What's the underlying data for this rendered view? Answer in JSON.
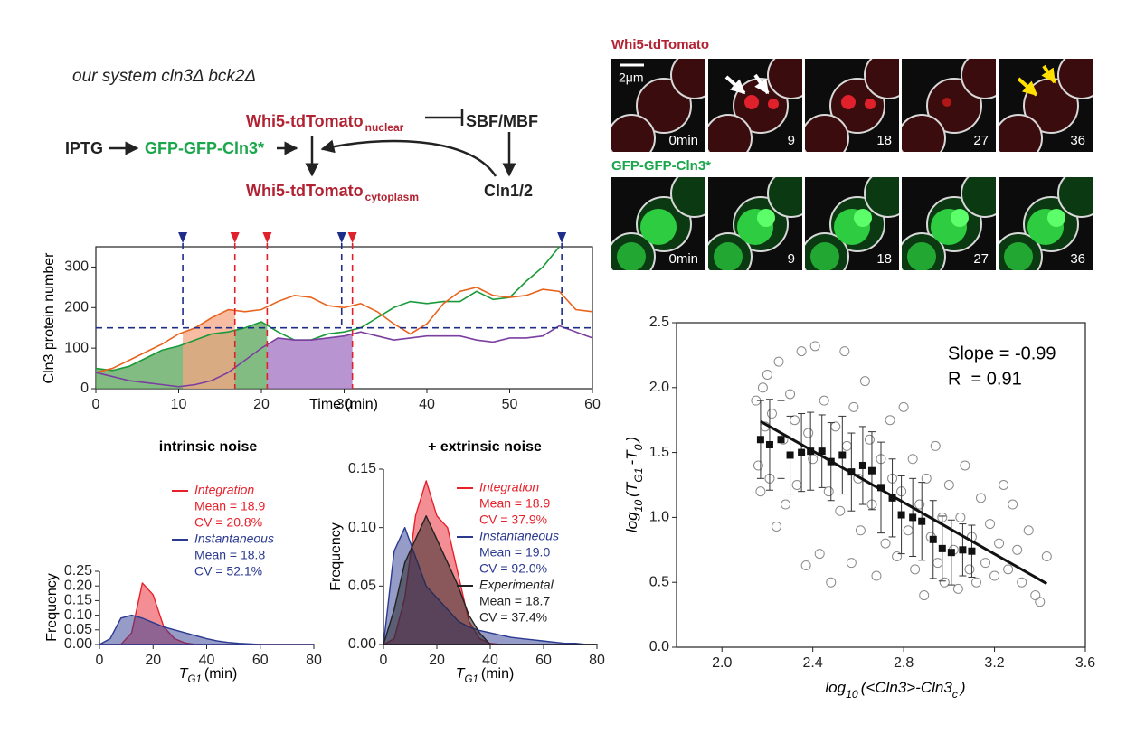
{
  "diagram": {
    "subtitle": "our system cln3Δ bck2Δ",
    "nodes": [
      {
        "label": "IPTG"
      },
      {
        "label": "GFP-GFP-Cln3*"
      },
      {
        "label": "Whi5-tdTomato",
        "sub": "nuclear"
      },
      {
        "label": "SBF/MBF"
      },
      {
        "label": "Whi5-tdTomato",
        "sub": "cytoplasm"
      },
      {
        "label": "Cln1/2"
      }
    ]
  },
  "microscopy": {
    "rows": [
      {
        "title": "Whi5-tdTomato",
        "scale_bar": "2μm",
        "times": [
          "0min",
          "9",
          "18",
          "27",
          "36"
        ]
      },
      {
        "title": "GFP-GFP-Cln3*",
        "times": [
          "0min",
          "9",
          "18",
          "27",
          "36"
        ]
      }
    ]
  },
  "chart_data": [
    {
      "type": "line",
      "xlabel": "Time (min)",
      "ylabel": "Cln3 protein number",
      "xlim": [
        0,
        60
      ],
      "xticks": [
        0,
        10,
        20,
        30,
        40,
        50,
        60
      ],
      "ylim": [
        0,
        350
      ],
      "yticks": [
        0,
        100,
        200,
        300
      ],
      "x": [
        0,
        2,
        4,
        6,
        8,
        10,
        12,
        14,
        16,
        18,
        20,
        22,
        24,
        26,
        28,
        30,
        32,
        34,
        36,
        38,
        40,
        42,
        44,
        46,
        48,
        50,
        52,
        54,
        56,
        58,
        60
      ],
      "series": [
        {
          "color": "#1a9a3a",
          "values": [
            50,
            45,
            55,
            75,
            95,
            105,
            120,
            135,
            140,
            150,
            165,
            140,
            120,
            120,
            135,
            140,
            150,
            175,
            200,
            215,
            210,
            215,
            215,
            240,
            220,
            225,
            265,
            300,
            350,
            null,
            null
          ]
        },
        {
          "color": "#e8641e",
          "values": [
            40,
            50,
            70,
            90,
            110,
            135,
            150,
            175,
            195,
            190,
            195,
            215,
            230,
            225,
            205,
            200,
            210,
            190,
            160,
            135,
            160,
            210,
            240,
            250,
            230,
            225,
            230,
            245,
            240,
            195,
            190
          ]
        },
        {
          "color": "#7b3fa0",
          "values": [
            40,
            30,
            20,
            15,
            10,
            5,
            10,
            20,
            40,
            70,
            100,
            125,
            120,
            120,
            125,
            130,
            140,
            130,
            120,
            125,
            130,
            130,
            130,
            120,
            115,
            125,
            125,
            130,
            155,
            140,
            125
          ]
        }
      ],
      "shaded": [
        {
          "series": 0,
          "from": 0,
          "to": 20.7,
          "color": "#5aa55a"
        },
        {
          "series": 1,
          "from": 10.5,
          "to": 16.8,
          "color": "#f4a582"
        },
        {
          "series": 2,
          "from": 20.7,
          "to": 31,
          "color": "#a070c0"
        }
      ],
      "threshold": 150,
      "threshold_color": "#1f2d8a",
      "markers": [
        {
          "x": 10.5,
          "color": "#1f2d8a"
        },
        {
          "x": 16.8,
          "color": "#e0202a"
        },
        {
          "x": 20.7,
          "color": "#e0202a"
        },
        {
          "x": 29.7,
          "color": "#1f2d8a"
        },
        {
          "x": 31,
          "color": "#e0202a"
        },
        {
          "x": 56.3,
          "color": "#1f2d8a"
        }
      ]
    },
    {
      "type": "histogram",
      "title": "intrinsic noise",
      "xlabel": [
        {
          "text": "T"
        },
        {
          "sub": "G1"
        },
        {
          "text": "(min)"
        }
      ],
      "ylabel": "Frequency",
      "xlim": [
        0,
        80
      ],
      "xticks": [
        0,
        20,
        40,
        60,
        80
      ],
      "ylim": [
        0,
        0.25
      ],
      "yticks": [
        {
          "value": 0,
          "label": "0.00"
        },
        0.05,
        {
          "value": 0.1,
          "label": "0.10"
        },
        0.15,
        {
          "value": 0.2,
          "label": "0.20"
        },
        0.25
      ],
      "x": [
        0,
        4,
        8,
        12,
        16,
        20,
        24,
        28,
        32,
        36,
        40,
        44,
        48,
        52,
        56,
        60,
        64,
        68,
        72,
        76,
        80
      ],
      "series": [
        {
          "name": "Integration",
          "color": "#e8202a",
          "stats": [
            "Mean = 18.9",
            "CV = 20.8%"
          ],
          "values": [
            0,
            0,
            0,
            0.04,
            0.21,
            0.17,
            0.06,
            0.02,
            0.005,
            0,
            0,
            0,
            0,
            0,
            0,
            0,
            0,
            0,
            0,
            0,
            0
          ]
        },
        {
          "name": "Instantaneous",
          "color": "#2b3990",
          "stats": [
            "Mean = 18.8",
            "CV = 52.1%"
          ],
          "values": [
            0,
            0.02,
            0.09,
            0.1,
            0.09,
            0.075,
            0.06,
            0.05,
            0.04,
            0.03,
            0.02,
            0.012,
            0.007,
            0.004,
            0.002,
            0,
            0,
            0,
            0,
            0,
            0
          ]
        }
      ]
    },
    {
      "type": "histogram",
      "title": "+ extrinsic noise",
      "xlabel": [
        {
          "text": "T"
        },
        {
          "sub": "G1"
        },
        {
          "text": "(min)"
        }
      ],
      "ylabel": "Frequency",
      "xlim": [
        0,
        80
      ],
      "xticks": [
        0,
        20,
        40,
        60,
        80
      ],
      "ylim": [
        0,
        0.15
      ],
      "yticks": [
        {
          "value": 0,
          "label": "0.00"
        },
        0.05,
        {
          "value": 0.1,
          "label": "0.10"
        },
        0.15
      ],
      "x": [
        0,
        4,
        8,
        12,
        16,
        20,
        24,
        28,
        32,
        36,
        40,
        44,
        48,
        52,
        56,
        60,
        64,
        68,
        72,
        76,
        80
      ],
      "series": [
        {
          "name": "Integration",
          "color": "#e8202a",
          "stats": [
            "Mean = 18.9",
            "CV = 37.9%"
          ],
          "values": [
            0,
            0.005,
            0.04,
            0.11,
            0.14,
            0.11,
            0.1,
            0.06,
            0.02,
            0.005,
            0.001,
            0,
            0,
            0,
            0,
            0,
            0,
            0,
            0,
            0,
            0
          ]
        },
        {
          "name": "Instantaneous",
          "color": "#2b3990",
          "stats": [
            "Mean = 19.0",
            "CV = 92.0%"
          ],
          "values": [
            0,
            0.08,
            0.1,
            0.075,
            0.05,
            0.04,
            0.03,
            0.02,
            0.015,
            0.012,
            0.01,
            0.008,
            0.006,
            0.005,
            0.004,
            0.003,
            0.002,
            0.001,
            0.001,
            0,
            0
          ]
        },
        {
          "name": "Experimental",
          "color": "#222222",
          "stats": [
            "Mean = 18.7",
            "CV = 37.4%"
          ],
          "values": [
            0,
            0.03,
            0.07,
            0.09,
            0.11,
            0.09,
            0.07,
            0.05,
            0.025,
            0.01,
            0,
            0,
            0,
            0,
            0,
            0,
            0,
            0,
            0,
            0,
            0
          ]
        }
      ]
    },
    {
      "type": "scatter",
      "xlabel": [
        {
          "text": "log"
        },
        {
          "sub": "10"
        },
        {
          "text": "(<Cln3>-Cln3"
        },
        {
          "sub": "c"
        },
        {
          "text": ")"
        }
      ],
      "ylabel": [
        {
          "text": "log"
        },
        {
          "sub": "10"
        },
        {
          "text": "(T"
        },
        {
          "sub": "G1"
        },
        {
          "text": "-T"
        },
        {
          "sub": "0"
        },
        {
          "text": ")"
        }
      ],
      "annotations": [
        "Slope = -0.99",
        "R  = 0.91"
      ],
      "xlim": [
        1.8,
        3.6
      ],
      "xticks": [
        {
          "value": 2,
          "label": "2.0"
        },
        2.4,
        2.8,
        3.2,
        3.6
      ],
      "ylim": [
        0,
        2.5
      ],
      "yticks": [
        {
          "value": 0,
          "label": "0.0"
        },
        0.5,
        {
          "value": 1,
          "label": "1.0"
        },
        1.5,
        {
          "value": 2,
          "label": "2.0"
        },
        2.5
      ],
      "points": {
        "x": [
          2.15,
          2.16,
          2.17,
          2.18,
          2.19,
          2.2,
          2.21,
          2.22,
          2.24,
          2.25,
          2.27,
          2.28,
          2.3,
          2.32,
          2.33,
          2.35,
          2.37,
          2.38,
          2.4,
          2.41,
          2.43,
          2.45,
          2.47,
          2.48,
          2.5,
          2.52,
          2.54,
          2.55,
          2.57,
          2.58,
          2.6,
          2.61,
          2.63,
          2.65,
          2.66,
          2.68,
          2.7,
          2.72,
          2.74,
          2.75,
          2.77,
          2.79,
          2.8,
          2.82,
          2.84,
          2.85,
          2.87,
          2.89,
          2.9,
          2.92,
          2.94,
          2.95,
          2.97,
          2.98,
          3.0,
          3.02,
          3.04,
          3.05,
          3.07,
          3.09,
          3.1,
          3.12,
          3.14,
          3.16,
          3.18,
          3.2,
          3.22,
          3.24,
          3.26,
          3.28,
          3.3,
          3.32,
          3.35,
          3.38,
          3.4,
          3.43
        ],
        "y": [
          1.9,
          1.4,
          1.2,
          2.0,
          1.7,
          2.1,
          1.3,
          1.8,
          0.93,
          2.2,
          1.6,
          1.1,
          1.95,
          1.75,
          1.25,
          2.28,
          0.63,
          1.65,
          1.45,
          2.32,
          0.72,
          1.9,
          1.2,
          0.5,
          1.7,
          1.05,
          2.28,
          1.55,
          0.65,
          1.85,
          1.3,
          0.9,
          2.05,
          1.6,
          1.1,
          0.55,
          1.45,
          0.8,
          1.75,
          1.3,
          0.7,
          1.2,
          1.85,
          0.9,
          1.45,
          0.6,
          1.1,
          0.4,
          1.3,
          0.85,
          1.55,
          0.65,
          1.0,
          0.5,
          1.25,
          0.75,
          0.45,
          1.0,
          1.4,
          0.6,
          0.85,
          0.5,
          1.15,
          0.65,
          0.95,
          0.55,
          0.8,
          1.25,
          0.6,
          1.1,
          0.75,
          0.5,
          0.9,
          0.4,
          0.35,
          0.7
        ]
      },
      "means": {
        "x": [
          2.17,
          2.21,
          2.26,
          2.3,
          2.35,
          2.39,
          2.44,
          2.48,
          2.53,
          2.57,
          2.62,
          2.66,
          2.7,
          2.75,
          2.79,
          2.84,
          2.88,
          2.93,
          2.97,
          3.01,
          3.06,
          3.1
        ],
        "y": [
          1.6,
          1.56,
          1.6,
          1.48,
          1.5,
          1.51,
          1.51,
          1.43,
          1.48,
          1.35,
          1.4,
          1.36,
          1.23,
          1.15,
          1.02,
          1.0,
          0.97,
          0.83,
          0.76,
          0.73,
          0.75,
          0.74
        ],
        "error": [
          0.3,
          0.35,
          0.3,
          0.3,
          0.3,
          0.3,
          0.28,
          0.3,
          0.3,
          0.3,
          0.3,
          0.3,
          0.35,
          0.3,
          0.3,
          0.3,
          0.3,
          0.3,
          0.25,
          0.25,
          0.2,
          0.2
        ]
      },
      "fit": {
        "x": [
          2.17,
          3.43
        ],
        "y": [
          1.74,
          0.49
        ]
      }
    }
  ]
}
